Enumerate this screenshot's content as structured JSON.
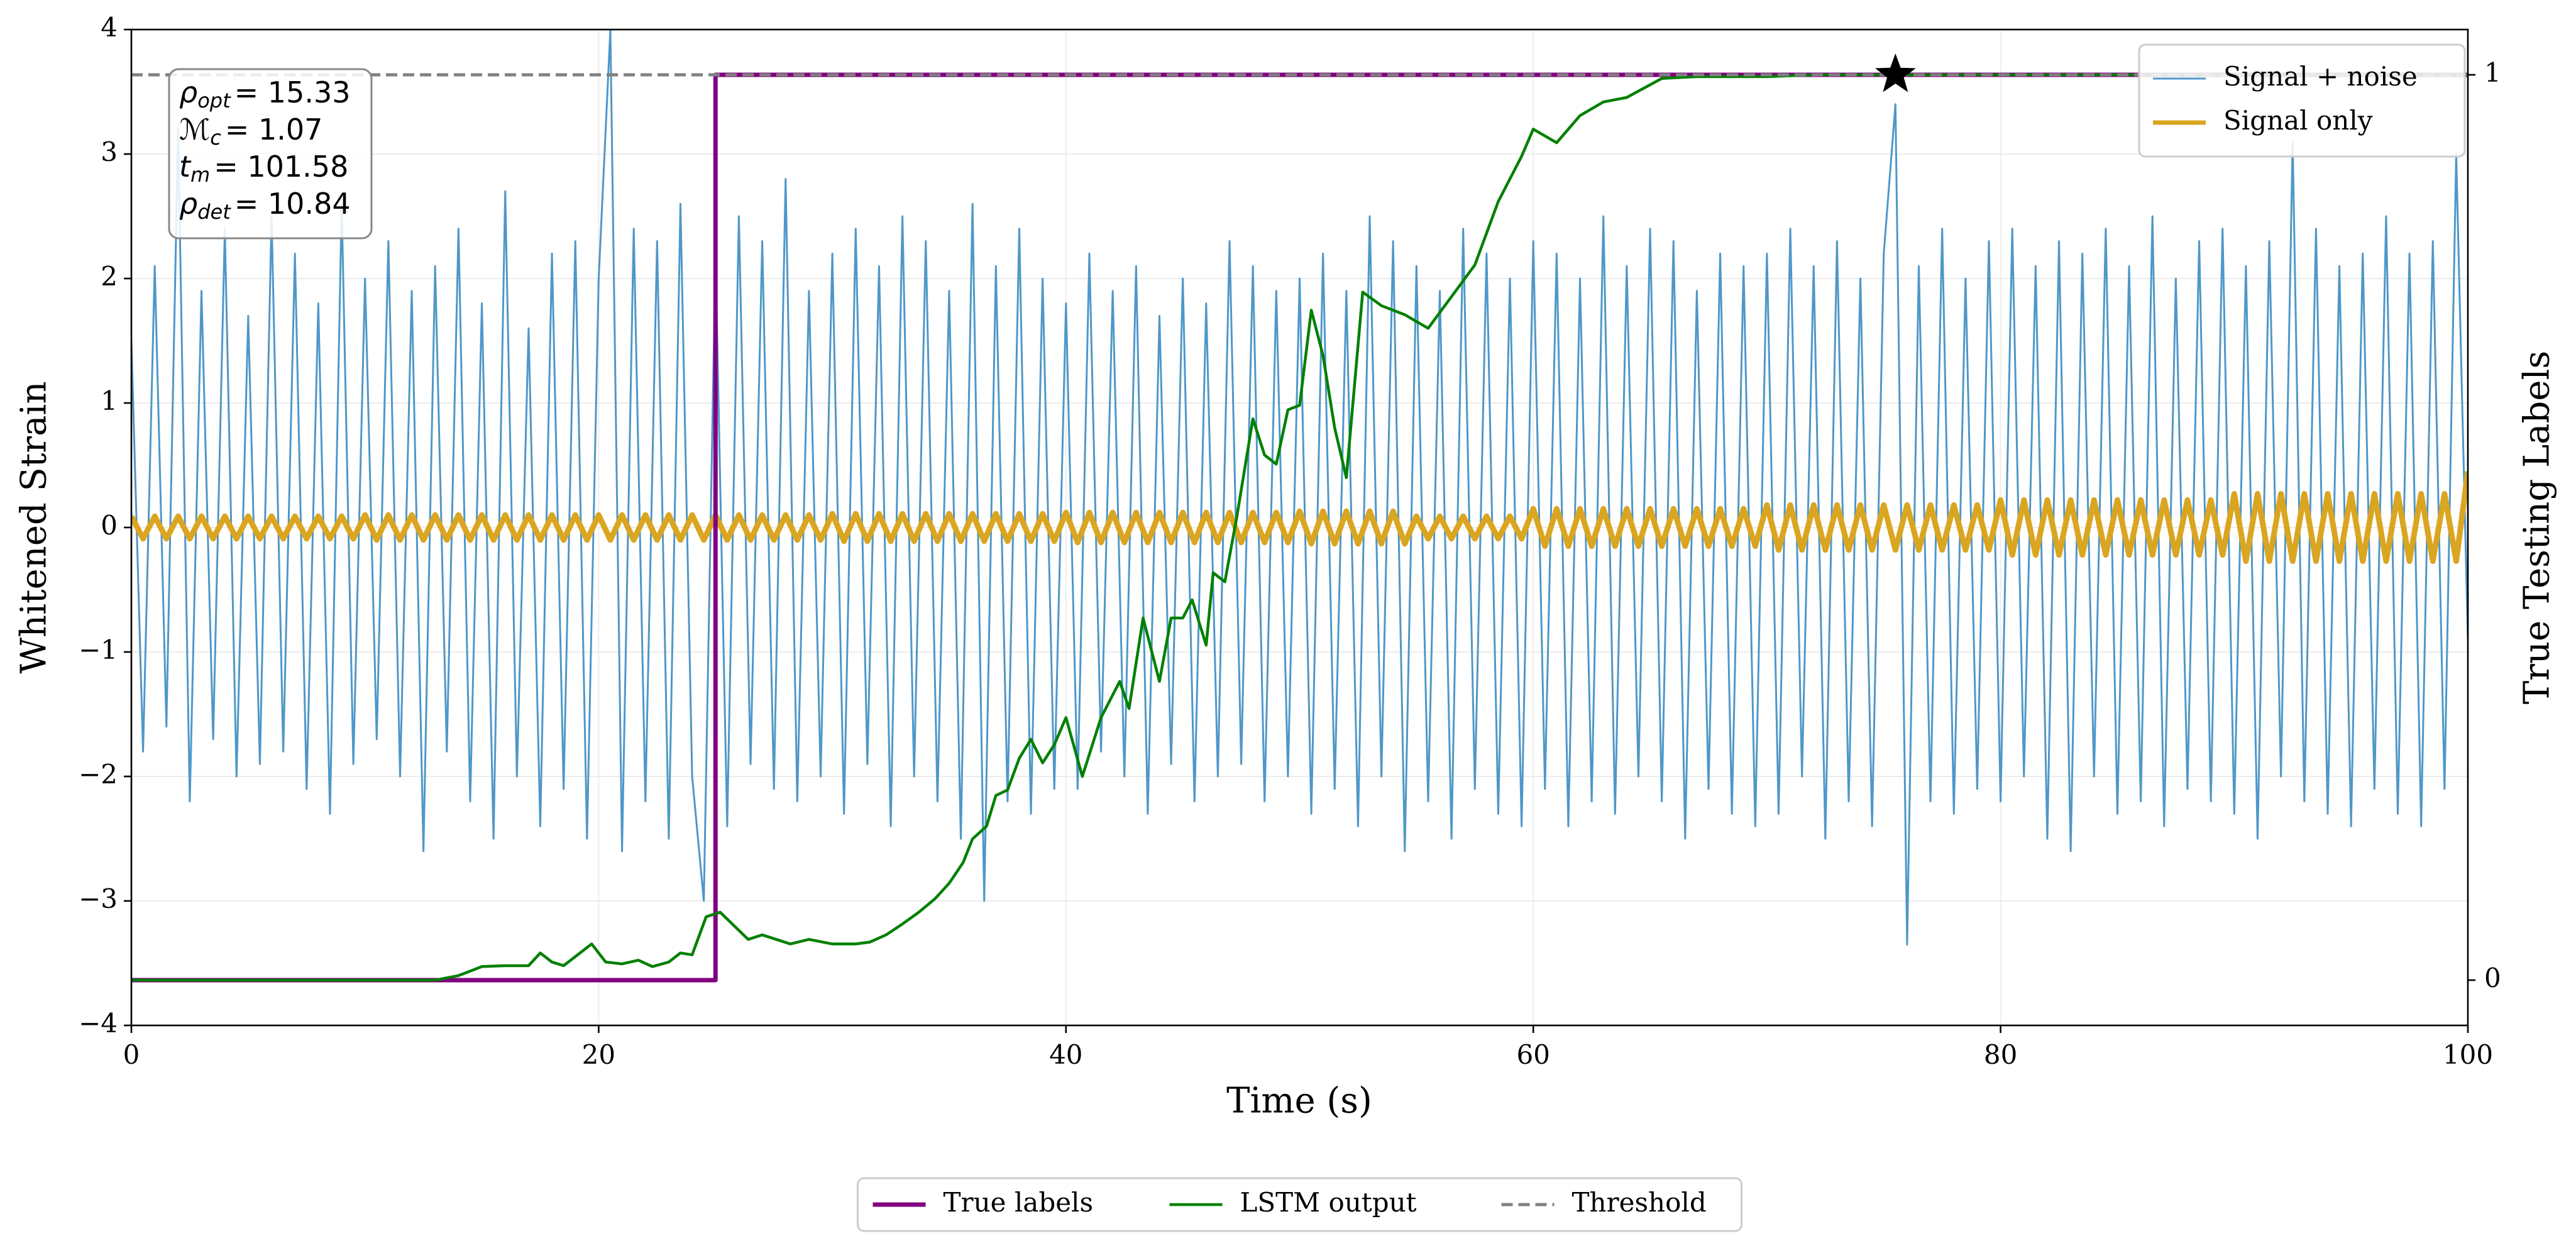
{
  "chart_data": {
    "type": "line",
    "xlabel": "Time (s)",
    "ylabel": "Whitened Strain",
    "y2label": "True Testing Labels",
    "xlim": [
      0,
      100
    ],
    "xticks": [
      0,
      20,
      40,
      60,
      80,
      100
    ],
    "ylim": [
      -4,
      4
    ],
    "yticks": [
      {
        "value": -4,
        "label": "−4"
      },
      {
        "value": -3,
        "label": "−3"
      },
      {
        "value": -2,
        "label": "−2"
      },
      {
        "value": -1,
        "label": "−1"
      },
      0,
      1,
      2,
      3,
      4
    ],
    "y2lim": [
      -0.05,
      1.05
    ],
    "y2ticks": [
      0,
      1
    ],
    "grid": true,
    "legend_loc": "upper right",
    "legend2_loc": "lower center",
    "x": [
      0,
      0.5,
      1,
      1.5,
      2,
      2.5,
      3,
      3.5,
      4,
      4.5,
      5,
      5.5,
      6,
      6.5,
      7,
      7.5,
      8,
      8.5,
      9,
      9.5,
      10,
      10.5,
      11,
      11.5,
      12,
      12.5,
      13,
      13.5,
      14,
      14.5,
      15,
      15.5,
      16,
      16.5,
      17,
      17.5,
      18,
      18.5,
      19,
      19.5,
      20,
      20.5,
      21,
      21.5,
      22,
      22.5,
      23,
      23.5,
      24,
      24.5,
      25,
      25.5,
      26,
      26.5,
      27,
      27.5,
      28,
      28.5,
      29,
      29.5,
      30,
      30.5,
      31,
      31.5,
      32,
      32.5,
      33,
      33.5,
      34,
      34.5,
      35,
      35.5,
      36,
      36.5,
      37,
      37.5,
      38,
      38.5,
      39,
      39.5,
      40,
      40.5,
      41,
      41.5,
      42,
      42.5,
      43,
      43.5,
      44,
      44.5,
      45,
      45.5,
      46,
      46.5,
      47,
      47.5,
      48,
      48.5,
      49,
      49.5,
      50,
      50.5,
      51,
      51.5,
      52,
      52.5,
      53,
      53.5,
      54,
      54.5,
      55,
      55.5,
      56,
      56.5,
      57,
      57.5,
      58,
      58.5,
      59,
      59.5,
      60,
      60.5,
      61,
      61.5,
      62,
      62.5,
      63,
      63.5,
      64,
      64.5,
      65,
      65.5,
      66,
      66.5,
      67,
      67.5,
      68,
      68.5,
      69,
      69.5,
      70,
      70.5,
      71,
      71.5,
      72,
      72.5,
      73,
      73.5,
      74,
      74.5,
      75,
      75.5,
      76,
      76.5,
      77,
      77.5,
      78,
      78.5,
      79,
      79.5,
      80,
      80.5,
      81,
      81.5,
      82,
      82.5,
      83,
      83.5,
      84,
      84.5,
      85,
      85.5,
      86,
      86.5,
      87,
      87.5,
      88,
      88.5,
      89,
      89.5,
      90,
      90.5,
      91,
      91.5,
      92,
      92.5,
      93,
      93.5,
      94,
      94.5,
      95,
      95.5,
      96,
      96.5,
      97,
      97.5,
      98,
      98.5,
      99,
      99.5,
      100
    ],
    "series": [
      {
        "name": "Signal + noise",
        "color": "#4f97c9",
        "width": 3,
        "values": [
          1.5,
          -1.8,
          2.1,
          -1.6,
          3.2,
          -2.2,
          1.9,
          -1.7,
          2.4,
          -2.0,
          1.7,
          -1.9,
          2.5,
          -1.8,
          2.2,
          -2.1,
          1.8,
          -2.3,
          2.6,
          -1.9,
          2.0,
          -1.7,
          2.3,
          -2.0,
          1.9,
          -2.6,
          2.1,
          -1.8,
          2.4,
          -2.2,
          1.8,
          -2.5,
          2.7,
          -2.0,
          1.6,
          -2.4,
          2.2,
          -2.1,
          2.3,
          -2.5,
          2.0,
          4.0,
          -2.6,
          2.4,
          -2.2,
          2.3,
          -2.5,
          2.6,
          -2.0,
          -3.0,
          2.2,
          -2.4,
          2.5,
          -1.9,
          2.3,
          -2.1,
          2.8,
          -2.2,
          1.9,
          -2.0,
          2.2,
          -2.3,
          2.4,
          -1.9,
          2.1,
          -2.4,
          2.5,
          -2.0,
          2.3,
          -2.2,
          1.9,
          -2.5,
          2.6,
          -3.0,
          2.1,
          -2.2,
          2.4,
          -2.3,
          2.0,
          -2.1,
          1.8,
          -2.1,
          2.2,
          -1.8,
          1.9,
          -2.0,
          2.1,
          -2.3,
          1.7,
          -1.9,
          2.0,
          -2.2,
          1.8,
          -2.0,
          2.3,
          -1.9,
          2.1,
          -2.2,
          1.9,
          -2.0,
          2.0,
          -2.3,
          2.2,
          -2.1,
          1.9,
          -2.4,
          2.5,
          -2.0,
          2.3,
          -2.6,
          2.1,
          -2.2,
          1.9,
          -2.5,
          2.4,
          -2.1,
          2.2,
          -2.3,
          2.0,
          -2.4,
          2.3,
          -2.1,
          2.2,
          -2.4,
          2.0,
          -2.2,
          2.5,
          -2.3,
          2.1,
          -2.0,
          2.4,
          -2.2,
          2.3,
          -2.5,
          1.9,
          -2.1,
          2.2,
          -2.3,
          2.1,
          -2.4,
          2.2,
          -2.3,
          2.4,
          -2.0,
          2.1,
          -2.5,
          2.3,
          -2.2,
          2.0,
          -2.4,
          2.2,
          3.4,
          -3.35,
          2.1,
          -2.2,
          2.4,
          -2.3,
          2.0,
          -2.1,
          2.3,
          -2.2,
          2.4,
          -2.0,
          2.1,
          -2.5,
          2.3,
          -2.6,
          2.2,
          -2.0,
          2.4,
          -2.3,
          2.1,
          -2.2,
          2.5,
          -2.4,
          2.0,
          -2.1,
          2.3,
          -2.2,
          2.4,
          -2.3,
          2.1,
          -2.5,
          2.3,
          -2.0,
          3.1,
          -2.2,
          2.4,
          -2.3,
          2.1,
          -2.4,
          2.2,
          -2.1,
          2.5,
          -2.3,
          2.2,
          -2.4,
          2.3,
          -2.1,
          3.0,
          -0.9
        ]
      },
      {
        "name": "Signal only",
        "color": "#daa520",
        "width": 9,
        "values": [
          0.09,
          -0.09,
          0.09,
          -0.09,
          0.09,
          -0.09,
          0.09,
          -0.09,
          0.09,
          -0.09,
          0.09,
          -0.09,
          0.09,
          -0.09,
          0.09,
          -0.09,
          0.09,
          -0.09,
          0.09,
          -0.09,
          0.1,
          -0.1,
          0.1,
          -0.1,
          0.1,
          -0.1,
          0.1,
          -0.1,
          0.1,
          -0.1,
          0.1,
          -0.1,
          0.1,
          -0.1,
          0.1,
          -0.1,
          0.1,
          -0.1,
          0.1,
          -0.1,
          0.1,
          -0.1,
          0.1,
          -0.1,
          0.1,
          -0.1,
          0.1,
          -0.1,
          0.1,
          -0.1,
          0.1,
          -0.1,
          0.1,
          -0.1,
          0.1,
          -0.1,
          0.1,
          -0.1,
          0.1,
          -0.1,
          0.11,
          -0.11,
          0.11,
          -0.11,
          0.11,
          -0.11,
          0.11,
          -0.11,
          0.11,
          -0.11,
          0.11,
          -0.11,
          0.11,
          -0.11,
          0.11,
          -0.11,
          0.11,
          -0.11,
          0.11,
          -0.11,
          0.12,
          -0.12,
          0.12,
          -0.12,
          0.12,
          -0.12,
          0.12,
          -0.12,
          0.12,
          -0.12,
          0.12,
          -0.12,
          0.12,
          -0.12,
          0.12,
          -0.12,
          0.12,
          -0.12,
          0.12,
          -0.12,
          0.13,
          -0.13,
          0.13,
          -0.13,
          0.13,
          -0.13,
          0.13,
          -0.13,
          0.13,
          -0.13,
          0.09,
          -0.09,
          0.09,
          -0.09,
          0.09,
          -0.09,
          0.09,
          -0.09,
          0.09,
          -0.09,
          0.15,
          -0.15,
          0.15,
          -0.15,
          0.15,
          -0.15,
          0.15,
          -0.15,
          0.15,
          -0.15,
          0.15,
          -0.15,
          0.15,
          -0.15,
          0.15,
          -0.15,
          0.15,
          -0.15,
          0.15,
          -0.15,
          0.18,
          -0.18,
          0.18,
          -0.18,
          0.18,
          -0.18,
          0.18,
          -0.18,
          0.18,
          -0.18,
          0.18,
          -0.18,
          0.18,
          -0.18,
          0.18,
          -0.18,
          0.18,
          -0.18,
          0.18,
          -0.18,
          0.22,
          -0.22,
          0.22,
          -0.22,
          0.22,
          -0.22,
          0.22,
          -0.22,
          0.22,
          -0.22,
          0.22,
          -0.22,
          0.22,
          -0.22,
          0.22,
          -0.22,
          0.22,
          -0.22,
          0.22,
          -0.22,
          0.27,
          -0.27,
          0.27,
          -0.27,
          0.27,
          -0.27,
          0.27,
          -0.27,
          0.27,
          -0.27,
          0.27,
          -0.27,
          0.27,
          -0.27,
          0.27,
          -0.27,
          0.27,
          -0.27,
          0.27,
          -0.27,
          0.45
        ]
      },
      {
        "name": "True labels",
        "color": "#800080",
        "width": 7,
        "axis": "y2",
        "x": [
          0,
          25,
          25,
          100
        ],
        "values": [
          0,
          0,
          1,
          1
        ]
      },
      {
        "name": "LSTM output",
        "color": "#008000",
        "width": 4.5,
        "axis": "y2",
        "x": [
          0,
          5,
          10,
          13,
          14,
          15,
          16,
          17,
          17.5,
          18,
          18.5,
          19,
          19.7,
          20.3,
          21,
          21.7,
          22.3,
          23,
          23.5,
          24,
          24.6,
          25.2,
          25.8,
          26.4,
          27,
          27.6,
          28.2,
          29,
          30,
          31,
          31.6,
          32.3,
          33,
          33.7,
          34.4,
          35,
          35.6,
          36,
          36.6,
          37,
          37.5,
          38,
          38.5,
          39,
          39.5,
          40,
          40.7,
          41.5,
          42.3,
          42.7,
          43.3,
          44,
          44.5,
          45,
          45.4,
          46,
          46.3,
          46.8,
          47.3,
          48,
          48.5,
          49,
          49.5,
          50,
          50.5,
          51,
          51.5,
          52,
          52.7,
          53.5,
          54.5,
          55.5,
          56.5,
          57.5,
          58.5,
          59.5,
          60,
          61,
          62,
          63,
          64,
          65.5,
          67,
          70,
          72,
          80,
          90,
          100
        ],
        "values": [
          0,
          0,
          0,
          0,
          0.005,
          0.015,
          0.016,
          0.016,
          0.03,
          0.02,
          0.016,
          0.026,
          0.04,
          0.02,
          0.018,
          0.022,
          0.015,
          0.02,
          0.03,
          0.028,
          0.07,
          0.075,
          0.06,
          0.045,
          0.05,
          0.045,
          0.04,
          0.045,
          0.04,
          0.04,
          0.042,
          0.05,
          0.062,
          0.075,
          0.09,
          0.107,
          0.13,
          0.156,
          0.17,
          0.204,
          0.21,
          0.245,
          0.266,
          0.24,
          0.26,
          0.29,
          0.225,
          0.29,
          0.33,
          0.3,
          0.4,
          0.33,
          0.4,
          0.4,
          0.42,
          0.37,
          0.45,
          0.44,
          0.51,
          0.62,
          0.58,
          0.57,
          0.63,
          0.635,
          0.74,
          0.69,
          0.61,
          0.555,
          0.76,
          0.745,
          0.735,
          0.72,
          0.755,
          0.79,
          0.86,
          0.91,
          0.94,
          0.925,
          0.955,
          0.97,
          0.975,
          0.996,
          0.998,
          0.998,
          1,
          1,
          1,
          1
        ]
      },
      {
        "name": "Threshold",
        "color": "#808080",
        "width": 5,
        "dashed": true,
        "axis": "y2",
        "x": [
          0,
          100
        ],
        "values": [
          1,
          1
        ]
      }
    ],
    "marker": {
      "x": 75.5,
      "y": 1,
      "axis": "y2",
      "color": "#000000"
    },
    "annotations": [
      {
        "symbol": "ρ",
        "subscript": "opt",
        "text": "= 15.33"
      },
      {
        "symbol": "ℳ",
        "subscript": "c",
        "text": "= 1.07"
      },
      {
        "symbol": "t",
        "subscript": "m",
        "text": "= 101.58"
      },
      {
        "symbol": "ρ",
        "subscript": "det",
        "text": "= 10.84"
      }
    ]
  }
}
